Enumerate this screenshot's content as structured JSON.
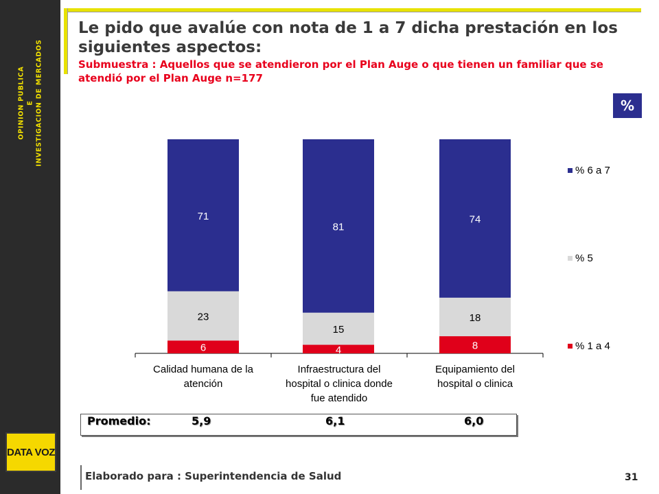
{
  "sidebar": {
    "line1": "OPINION PUBLICA",
    "line2": "E",
    "line3": "INVESTIGACION DE MERCADOS"
  },
  "logo": {
    "text": "DATA VOZ"
  },
  "header": {
    "title": "Le pido que avalúe con nota de 1 a 7 dicha prestación en los siguientes aspectos:",
    "subtitle": "Submuestra : Aquellos que se atendieron por el Plan Auge o que tienen un familiar que se atendió por el Plan Auge n=177"
  },
  "badge": "%",
  "colors": {
    "series_high": "#2b2e8f",
    "series_mid": "#d9d9d9",
    "series_low": "#e0001a",
    "accent": "#e8e200"
  },
  "chart_data": {
    "type": "bar",
    "stacked": true,
    "categories": [
      [
        "Calidad humana de la",
        "atención"
      ],
      [
        "Infraestructura del",
        "hospital o clinica donde",
        "fue atendido"
      ],
      [
        "Equipamiento del",
        "hospital o clinica"
      ]
    ],
    "series": [
      {
        "name": "% 1 a 4",
        "values": [
          6,
          4,
          8
        ],
        "color": "#e0001a"
      },
      {
        "name": "% 5",
        "values": [
          23,
          15,
          18
        ],
        "color": "#d9d9d9"
      },
      {
        "name": "% 6 a 7",
        "values": [
          71,
          81,
          74
        ],
        "color": "#2b2e8f"
      }
    ],
    "ylim": [
      0,
      100
    ],
    "legend_position": "right",
    "grid": false
  },
  "promedio": {
    "label": "Promedio:",
    "values": [
      "5,9",
      "6,1",
      "6,0"
    ]
  },
  "footer": {
    "text": "Elaborado para : Superintendencia de Salud",
    "page": "31"
  }
}
